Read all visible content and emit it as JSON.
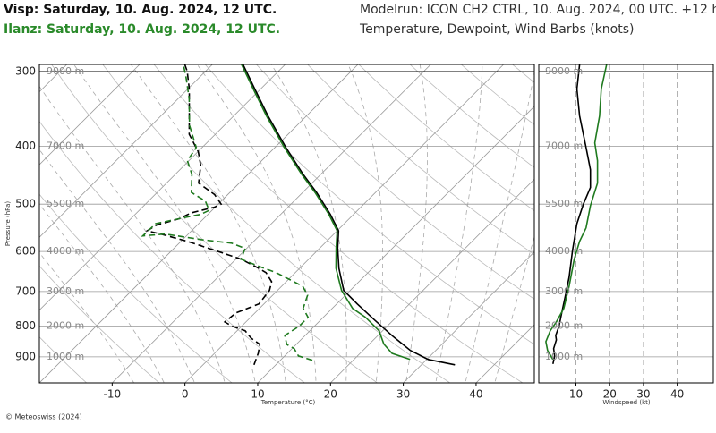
{
  "header": {
    "line1": "Visp: Saturday, 10. Aug. 2024, 12 UTC.",
    "line2": "Ilanz: Saturday, 10. Aug. 2024, 12 UTC.",
    "model_run": "Modelrun: ICON CH2 CTRL, 10. Aug. 2024, 00 UTC. +12 h",
    "subtitle": "Temperature, Dewpoint, Wind Barbs (knots)"
  },
  "footer": "© Meteoswiss (2024)",
  "chart_data": [
    {
      "type": "skewt",
      "y_label": "Pressure (hPa)",
      "x_label": "Temperature (°C)",
      "log_y": true,
      "ylim": [
        995,
        292
      ],
      "yticks": [
        300,
        400,
        500,
        600,
        700,
        800,
        900
      ],
      "altitude_labels": [
        "9000 m",
        "7000 m",
        "5500 m",
        "4000 m",
        "3000 m",
        "2000 m",
        "1000 m"
      ],
      "xlim": [
        -20,
        48
      ],
      "xticks": [
        -10,
        0,
        10,
        20,
        30,
        40
      ],
      "series": [
        {
          "color": "#000000",
          "dashed": false,
          "y": [
            928,
            909,
            878,
            831,
            781,
            734,
            697,
            640,
            593,
            554,
            520,
            478,
            446,
            402,
            356,
            321,
            292
          ],
          "x": [
            34.6,
            30.2,
            26.5,
            22.1,
            17.4,
            12.8,
            9.1,
            5.4,
            2.5,
            0.2,
            -3.2,
            -8.1,
            -12.4,
            -18.5,
            -25.3,
            -30.8,
            -35.8
          ]
        },
        {
          "color": "#1f7a1f",
          "dashed": false,
          "y": [
            909,
            888,
            857,
            814,
            773,
            747,
            697,
            640,
            593,
            554,
            520,
            478,
            446,
            402,
            356,
            321,
            292
          ],
          "x": [
            27.7,
            24.4,
            22.0,
            19.5,
            15.8,
            12.8,
            8.8,
            5.0,
            2.3,
            0.0,
            -3.4,
            -8.3,
            -12.6,
            -18.7,
            -25.5,
            -31.0,
            -36.0
          ]
        },
        {
          "color": "#000000",
          "dashed": true,
          "y": [
            928,
            888,
            858,
            837,
            814,
            800,
            787,
            760,
            734,
            697,
            674,
            651,
            640,
            618,
            597,
            577,
            561,
            554,
            542,
            529,
            517,
            506,
            500,
            482,
            461,
            431,
            409,
            382,
            356,
            321,
            300,
            292
          ],
          "x": [
            7.0,
            6.0,
            5.0,
            2.9,
            1.1,
            -1.3,
            -2.9,
            -2.6,
            -0.7,
            -1.1,
            -2.0,
            -4.0,
            -5.6,
            -9.3,
            -14.2,
            -19.1,
            -23.8,
            -26.1,
            -25.6,
            -23.4,
            -22.5,
            -20.1,
            -19.6,
            -21.8,
            -25.6,
            -27.7,
            -29.9,
            -33.6,
            -36.1,
            -39.8,
            -42.5,
            -43.8
          ]
        },
        {
          "color": "#1f7a1f",
          "dashed": true,
          "y": [
            912,
            897,
            872,
            858,
            829,
            800,
            773,
            747,
            710,
            686,
            651,
            635,
            618,
            593,
            581,
            573,
            561,
            565,
            539,
            529,
            520,
            512,
            494,
            478,
            446,
            423,
            402,
            369,
            333,
            305,
            292
          ],
          "x": [
            14.4,
            11.9,
            10.3,
            8.7,
            7.2,
            7.9,
            7.9,
            6.0,
            4.8,
            2.9,
            -2.6,
            -5.9,
            -9.3,
            -10.2,
            -12.8,
            -17.5,
            -23.2,
            -26.0,
            -25.9,
            -23.4,
            -21.0,
            -20.4,
            -22.2,
            -25.3,
            -27.7,
            -30.2,
            -30.8,
            -34.8,
            -38.5,
            -42.1,
            -44.0
          ]
        }
      ]
    },
    {
      "type": "profile",
      "x_label": "Windspeed (kt)",
      "log_y": true,
      "ylim": [
        995,
        292
      ],
      "yticks": [
        300,
        400,
        500,
        600,
        700,
        800,
        900
      ],
      "xlim": [
        -1,
        50.7
      ],
      "xticks": [
        10,
        20,
        30,
        40
      ],
      "series": [
        {
          "color": "#000000",
          "y": [
            925,
            897,
            872,
            843,
            829,
            800,
            760,
            710,
            662,
            597,
            539,
            500,
            469,
            438,
            402,
            356,
            321,
            292
          ],
          "x": [
            3.2,
            3.7,
            3.4,
            4.2,
            4.0,
            5.0,
            5.8,
            6.9,
            8.0,
            9.0,
            10.3,
            12.2,
            14.3,
            14.3,
            13.0,
            11.1,
            10.3,
            11.1
          ]
        },
        {
          "color": "#1f7a1f",
          "y": [
            909,
            878,
            849,
            814,
            787,
            747,
            686,
            618,
            577,
            548,
            503,
            461,
            423,
            395,
            356,
            321,
            292
          ],
          "x": [
            3.2,
            1.6,
            1.1,
            2.4,
            4.2,
            6.4,
            8.0,
            9.5,
            11.1,
            13.0,
            14.3,
            16.4,
            16.4,
            15.6,
            17.0,
            17.5,
            19.1
          ]
        }
      ]
    }
  ]
}
